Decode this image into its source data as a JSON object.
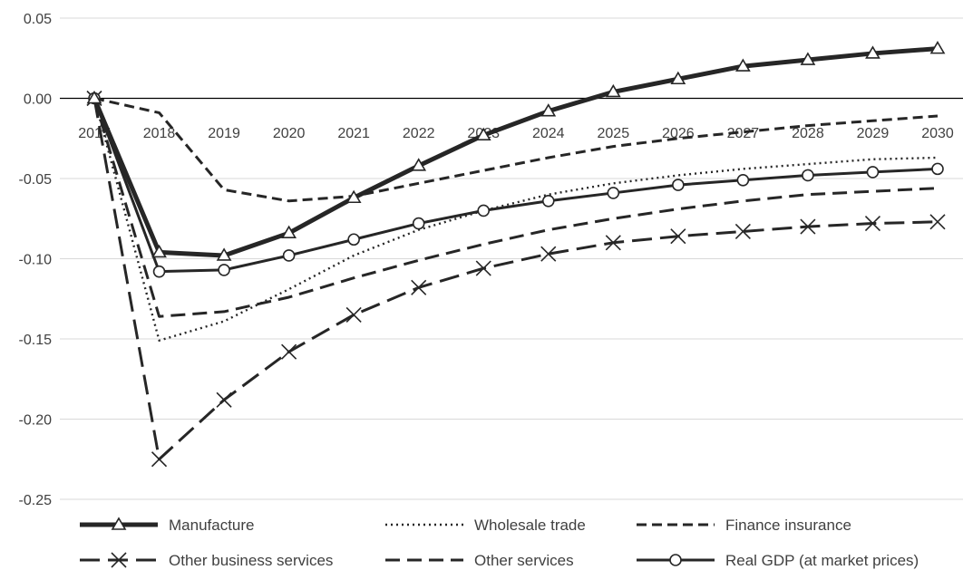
{
  "chart_data": {
    "type": "line",
    "title": "",
    "xlabel": "",
    "ylabel": "",
    "x": [
      "2017",
      "2018",
      "2019",
      "2020",
      "2021",
      "2022",
      "2023",
      "2024",
      "2025",
      "2026",
      "2027",
      "2028",
      "2029",
      "2030"
    ],
    "ylim": [
      -0.25,
      0.05
    ],
    "yticks": [
      "0.05",
      "0.00",
      "-0.05",
      "-0.10",
      "-0.15",
      "-0.20",
      "-0.25"
    ],
    "grid": "horizontal",
    "legend_position": "bottom",
    "series": [
      {
        "name": "Manufacture",
        "style": "thick-solid",
        "marker": "triangle",
        "values": [
          0.0,
          -0.096,
          -0.098,
          -0.084,
          -0.062,
          -0.042,
          -0.023,
          -0.008,
          0.004,
          0.012,
          0.02,
          0.024,
          0.028,
          0.031
        ]
      },
      {
        "name": "Wholesale trade",
        "style": "dotted",
        "marker": "none",
        "values": [
          0.0,
          -0.151,
          -0.139,
          -0.119,
          -0.098,
          -0.082,
          -0.07,
          -0.06,
          -0.053,
          -0.048,
          -0.044,
          -0.041,
          -0.038,
          -0.037
        ]
      },
      {
        "name": "Finance insurance",
        "style": "short-dash",
        "marker": "none",
        "values": [
          0.0,
          -0.009,
          -0.057,
          -0.064,
          -0.061,
          -0.053,
          -0.045,
          -0.037,
          -0.03,
          -0.025,
          -0.021,
          -0.017,
          -0.014,
          -0.011
        ]
      },
      {
        "name": "Other business services",
        "style": "long-dash",
        "marker": "x",
        "values": [
          0.0,
          -0.225,
          -0.188,
          -0.158,
          -0.135,
          -0.118,
          -0.106,
          -0.097,
          -0.09,
          -0.086,
          -0.083,
          -0.08,
          -0.078,
          -0.077
        ]
      },
      {
        "name": "Other services",
        "style": "medium-dash",
        "marker": "none",
        "values": [
          0.0,
          -0.136,
          -0.133,
          -0.124,
          -0.112,
          -0.101,
          -0.091,
          -0.082,
          -0.075,
          -0.069,
          -0.064,
          -0.06,
          -0.058,
          -0.056
        ]
      },
      {
        "name": "Real GDP (at market prices)",
        "style": "solid",
        "marker": "circle",
        "values": [
          0.0,
          -0.108,
          -0.107,
          -0.098,
          -0.088,
          -0.078,
          -0.07,
          -0.064,
          -0.059,
          -0.054,
          -0.051,
          -0.048,
          -0.046,
          -0.044
        ]
      }
    ]
  },
  "colors": {
    "line": "#262626",
    "grid": "#d9d9d9",
    "zero": "#000000",
    "text": "#404040"
  }
}
